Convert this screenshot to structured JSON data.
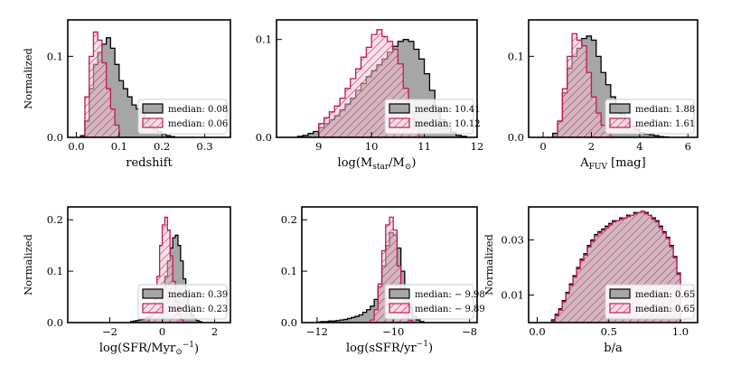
{
  "figure": {
    "colors": {
      "gray_fill": "#a6a6a6",
      "gray_edge": "#000000",
      "pink_fill": "#f4c6d6",
      "pink_edge": "#c2185b",
      "hatch": "#b03060"
    }
  },
  "chart_data": [
    {
      "type": "histogram",
      "xlabel": "redshift",
      "ylabel": "Normalized",
      "xlim": [
        -0.02,
        0.36
      ],
      "ylim": [
        0,
        0.145
      ],
      "xticks": [
        0.0,
        0.1,
        0.2,
        0.3
      ],
      "xtick_labels": [
        "0.0",
        "0.1",
        "0.2",
        "0.3"
      ],
      "yticks": [
        0.0,
        0.1
      ],
      "ytick_labels": [
        "0.0",
        "0.1"
      ],
      "legend_position": "lower-right",
      "series": [
        {
          "name": "median: 0.08",
          "style": "gray",
          "bin_start": 0.01,
          "bin_width": 0.01,
          "values": [
            0.002,
            0.02,
            0.06,
            0.09,
            0.105,
            0.115,
            0.123,
            0.11,
            0.09,
            0.07,
            0.06,
            0.05,
            0.04,
            0.035,
            0.03,
            0.022,
            0.015,
            0.01,
            0.007,
            0.004,
            0.002,
            0.001
          ]
        },
        {
          "name": "median: 0.06",
          "style": "pink",
          "bin_start": 0.02,
          "bin_width": 0.01,
          "values": [
            0.05,
            0.1,
            0.13,
            0.12,
            0.092,
            0.06,
            0.035,
            0.015
          ]
        }
      ]
    },
    {
      "type": "histogram",
      "xlabel": "log(M_star/M_sun)",
      "xlabel_main": "log(M",
      "xlabel_sub": "star",
      "xlabel_mid": "/M",
      "xlabel_end": ")",
      "ylabel": "",
      "xlim": [
        8.2,
        12.0
      ],
      "ylim": [
        0,
        0.12
      ],
      "xticks": [
        9,
        10,
        11,
        12
      ],
      "xtick_labels": [
        "9",
        "10",
        "11",
        "12"
      ],
      "yticks": [
        0.0,
        0.1
      ],
      "ytick_labels": [
        "0.0",
        "0.1"
      ],
      "legend_position": "lower-right",
      "series": [
        {
          "name": "median: 10.41",
          "style": "gray",
          "bin_start": 8.6,
          "bin_width": 0.1,
          "values": [
            0.001,
            0.002,
            0.004,
            0.006,
            0.01,
            0.014,
            0.018,
            0.022,
            0.028,
            0.034,
            0.04,
            0.048,
            0.055,
            0.062,
            0.068,
            0.074,
            0.08,
            0.087,
            0.093,
            0.098,
            0.1,
            0.098,
            0.09,
            0.08,
            0.065,
            0.048,
            0.03,
            0.018,
            0.01,
            0.005,
            0.002,
            0.001
          ]
        },
        {
          "name": "median: 10.12",
          "style": "pink",
          "bin_start": 9.0,
          "bin_width": 0.1,
          "values": [
            0.014,
            0.02,
            0.026,
            0.032,
            0.04,
            0.05,
            0.06,
            0.07,
            0.082,
            0.092,
            0.105,
            0.11,
            0.103,
            0.098,
            0.09,
            0.075,
            0.05,
            0.026,
            0.012
          ]
        }
      ]
    },
    {
      "type": "histogram",
      "xlabel": "A_FUV [mag]",
      "xlabel_main": "A",
      "xlabel_sub": "FUV",
      "xlabel_end": " [mag]",
      "ylabel": "",
      "xlim": [
        -0.6,
        6.4
      ],
      "ylim": [
        0,
        0.145
      ],
      "xticks": [
        0,
        2,
        4,
        6
      ],
      "xtick_labels": [
        "0",
        "2",
        "4",
        "6"
      ],
      "yticks": [
        0.0,
        0.1
      ],
      "ytick_labels": [
        "0.0",
        "0.1"
      ],
      "legend_position": "lower-right",
      "series": [
        {
          "name": "median: 1.88",
          "style": "gray",
          "bin_start": 0.4,
          "bin_width": 0.2,
          "values": [
            0.005,
            0.02,
            0.055,
            0.085,
            0.1,
            0.11,
            0.122,
            0.125,
            0.12,
            0.1,
            0.08,
            0.065,
            0.05,
            0.038,
            0.028,
            0.02,
            0.014,
            0.01,
            0.006,
            0.004,
            0.003,
            0.002,
            0.001,
            0.0005
          ]
        },
        {
          "name": "median: 1.61",
          "style": "pink",
          "bin_start": 0.6,
          "bin_width": 0.2,
          "values": [
            0.02,
            0.06,
            0.1,
            0.128,
            0.12,
            0.113,
            0.08,
            0.05,
            0.03,
            0.015,
            0.006
          ]
        }
      ]
    },
    {
      "type": "histogram",
      "xlabel": "log(SFR/M_sun yr^-1)",
      "xlabel_main": "log(SFR/M",
      "xlabel_mid": "yr",
      "xlabel_sup": "−1",
      "xlabel_end": ")",
      "ylabel": "Normalized",
      "xlim": [
        -3.6,
        2.6
      ],
      "ylim": [
        0,
        0.225
      ],
      "xticks": [
        -2,
        0,
        2
      ],
      "xtick_labels": [
        "−2",
        "0",
        "2"
      ],
      "yticks": [
        0.0,
        0.1,
        0.2
      ],
      "ytick_labels": [
        "0.0",
        "0.1",
        "0.2"
      ],
      "legend_position": "lower-right",
      "series": [
        {
          "name": "median: 0.39",
          "style": "gray",
          "bin_start": -1.2,
          "bin_width": 0.1,
          "values": [
            0.002,
            0.003,
            0.004,
            0.005,
            0.006,
            0.008,
            0.01,
            0.012,
            0.015,
            0.02,
            0.028,
            0.04,
            0.06,
            0.09,
            0.12,
            0.145,
            0.165,
            0.17,
            0.15,
            0.12,
            0.085,
            0.055,
            0.03,
            0.015,
            0.008,
            0.004,
            0.002
          ]
        },
        {
          "name": "median: 0.23",
          "style": "pink",
          "bin_start": -0.5,
          "bin_width": 0.1,
          "values": [
            0.008,
            0.02,
            0.045,
            0.09,
            0.15,
            0.19,
            0.205,
            0.18,
            0.13,
            0.08,
            0.04,
            0.015,
            0.005
          ]
        }
      ]
    },
    {
      "type": "histogram",
      "xlabel": "log(sSFR/yr^-1)",
      "xlabel_main": "log(sSFR/yr",
      "xlabel_sup": "−1",
      "xlabel_end": ")",
      "ylabel": "",
      "xlim": [
        -12.4,
        -7.8
      ],
      "ylim": [
        0,
        0.225
      ],
      "xticks": [
        -12,
        -10,
        -8
      ],
      "xtick_labels": [
        "−12",
        "−10",
        "−8"
      ],
      "yticks": [
        0.0,
        0.1,
        0.2
      ],
      "ytick_labels": [
        "0.0",
        "0.1",
        "0.2"
      ],
      "legend_position": "lower-right",
      "series": [
        {
          "name": "median: − 9.98",
          "style": "gray",
          "bin_start": -12.0,
          "bin_width": 0.1,
          "values": [
            0.001,
            0.002,
            0.002,
            0.003,
            0.003,
            0.004,
            0.005,
            0.006,
            0.008,
            0.01,
            0.012,
            0.015,
            0.02,
            0.025,
            0.032,
            0.045,
            0.07,
            0.11,
            0.15,
            0.175,
            0.17,
            0.145,
            0.1,
            0.06,
            0.03,
            0.012,
            0.005,
            0.002
          ]
        },
        {
          "name": "median: − 9.89",
          "style": "pink",
          "bin_start": -10.6,
          "bin_width": 0.1,
          "values": [
            0.005,
            0.025,
            0.075,
            0.14,
            0.19,
            0.205,
            0.18,
            0.11,
            0.05,
            0.015,
            0.004
          ]
        }
      ]
    },
    {
      "type": "histogram",
      "xlabel": "b/a",
      "ylabel": "Normalized",
      "xlim": [
        -0.06,
        1.12
      ],
      "ylim": [
        0,
        0.042
      ],
      "xticks": [
        0.0,
        0.5,
        1.0
      ],
      "xtick_labels": [
        "0.0",
        "0.5",
        "1.0"
      ],
      "yticks": [
        0.01,
        0.03
      ],
      "ytick_labels": [
        "0.01",
        "0.03"
      ],
      "legend_position": "lower-right",
      "series": [
        {
          "name": "median: 0.65",
          "style": "gray",
          "bin_start": 0.1,
          "bin_width": 0.025,
          "values": [
            0.001,
            0.003,
            0.005,
            0.008,
            0.011,
            0.014,
            0.017,
            0.02,
            0.023,
            0.025,
            0.028,
            0.03,
            0.032,
            0.033,
            0.034,
            0.035,
            0.036,
            0.037,
            0.037,
            0.038,
            0.038,
            0.039,
            0.039,
            0.04,
            0.04,
            0.04,
            0.04,
            0.039,
            0.038,
            0.037,
            0.035,
            0.033,
            0.031,
            0.028,
            0.024,
            0.018
          ]
        },
        {
          "name": "median: 0.65",
          "style": "pink",
          "bin_start": 0.1,
          "bin_width": 0.025,
          "values": [
            0.0005,
            0.0025,
            0.0045,
            0.0075,
            0.0105,
            0.0135,
            0.0165,
            0.0195,
            0.0225,
            0.0245,
            0.0275,
            0.0295,
            0.0315,
            0.0325,
            0.0335,
            0.0345,
            0.0355,
            0.0365,
            0.037,
            0.0375,
            0.038,
            0.0385,
            0.039,
            0.0395,
            0.04,
            0.0405,
            0.0395,
            0.039,
            0.0375,
            0.0365,
            0.0345,
            0.0325,
            0.0305,
            0.0275,
            0.0235,
            0.0175
          ]
        }
      ]
    }
  ]
}
